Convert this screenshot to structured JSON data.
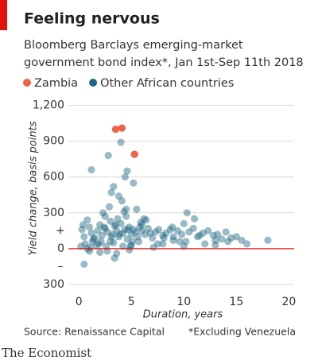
{
  "chart_data": {
    "type": "scatter",
    "title": "Feeling nervous",
    "subtitle": [
      "Bloomberg Barclays emerging-market",
      "government bond index*, Jan 1st-Sep 11th 2018"
    ],
    "x_label": "Duration, years",
    "y_label": "Yield change, basis points",
    "source": "Source: Renaissance Capital",
    "footnote": "*Excluding Venezuela",
    "brand": "The Economist",
    "annotations": [
      "+",
      "–"
    ],
    "xlim": [
      -1,
      20.5
    ],
    "xticks": [
      0,
      5,
      10,
      15,
      20
    ],
    "ylim": [
      -380,
      1250
    ],
    "yticks": [
      {
        "value": 1200,
        "label": "1,200"
      },
      900,
      600,
      300,
      0,
      {
        "value": -300,
        "label": "300"
      }
    ],
    "grid": true,
    "zero_line_color": "#e3120b",
    "series": [
      {
        "name": "Zambia",
        "color": "#f0614a",
        "opacity": 1,
        "x": [
          3.5,
          4.1,
          5.3
        ],
        "values": [
          1000,
          1010,
          790
        ]
      },
      {
        "name": "Other African countries",
        "color": "#1f6681",
        "opacity": 0.45,
        "x": [
          0.3,
          0.5,
          0.8,
          1,
          1.2,
          1.5,
          1.8,
          2,
          2.2,
          2.5,
          2.7,
          3,
          3.2,
          3.4,
          3.6,
          3.8,
          4,
          4.2,
          4.4,
          4.6,
          4.8,
          5,
          5.2,
          5.4,
          5.6,
          5.8,
          6,
          6.3,
          6.6,
          7,
          7.3,
          7.6,
          8,
          8.3,
          8.7,
          9,
          9.4,
          9.8,
          10.2,
          10.5,
          10.9,
          11.3,
          11.8,
          12.3,
          12.8,
          13.2,
          13.6,
          14,
          14.5,
          15,
          15.5,
          18,
          0.2,
          0.6,
          1.1,
          1.4,
          1.7,
          2.1,
          2.3,
          2.4,
          2.6,
          2.9,
          3.1,
          3.3,
          3.5,
          3.7,
          3.9,
          4.1,
          4.3,
          4.5,
          4.7,
          4.9,
          5.1,
          5.5,
          5.9,
          6.2,
          6.8,
          7.5,
          8.1,
          8.9,
          9.6,
          10,
          10.3,
          11,
          12,
          13,
          14.2,
          16,
          1.2,
          2.8,
          3.3,
          4.4,
          3.8,
          2.5,
          4,
          4.6,
          5.2,
          3,
          0.5,
          1,
          3.6,
          4.8,
          0.4,
          1.3,
          2,
          2.7,
          3.4,
          4.2,
          5,
          5.7,
          6.4,
          7.1,
          8,
          9,
          10,
          11.5,
          13,
          0.8,
          1.9,
          3.1,
          4.5,
          6
        ],
        "values": [
          160,
          100,
          240,
          180,
          130,
          90,
          150,
          200,
          110,
          170,
          140,
          60,
          120,
          190,
          150,
          100,
          210,
          130,
          160,
          80,
          180,
          120,
          160,
          140,
          100,
          180,
          150,
          120,
          170,
          90,
          140,
          160,
          110,
          130,
          160,
          100,
          150,
          120,
          60,
          140,
          170,
          100,
          130,
          150,
          110,
          120,
          80,
          140,
          90,
          100,
          70,
          70,
          20,
          40,
          10,
          80,
          30,
          60,
          300,
          180,
          20,
          350,
          100,
          50,
          200,
          250,
          120,
          400,
          310,
          270,
          160,
          20,
          60,
          330,
          220,
          250,
          130,
          40,
          90,
          180,
          60,
          210,
          300,
          250,
          40,
          30,
          60,
          40,
          660,
          780,
          520,
          600,
          440,
          270,
          890,
          650,
          550,
          230,
          -130,
          -20,
          -40,
          -10,
          200,
          60,
          -30,
          -20,
          -80,
          20,
          30,
          60,
          240,
          10,
          40,
          70,
          20,
          110,
          70,
          0,
          40,
          470,
          330,
          200
        ]
      }
    ]
  }
}
